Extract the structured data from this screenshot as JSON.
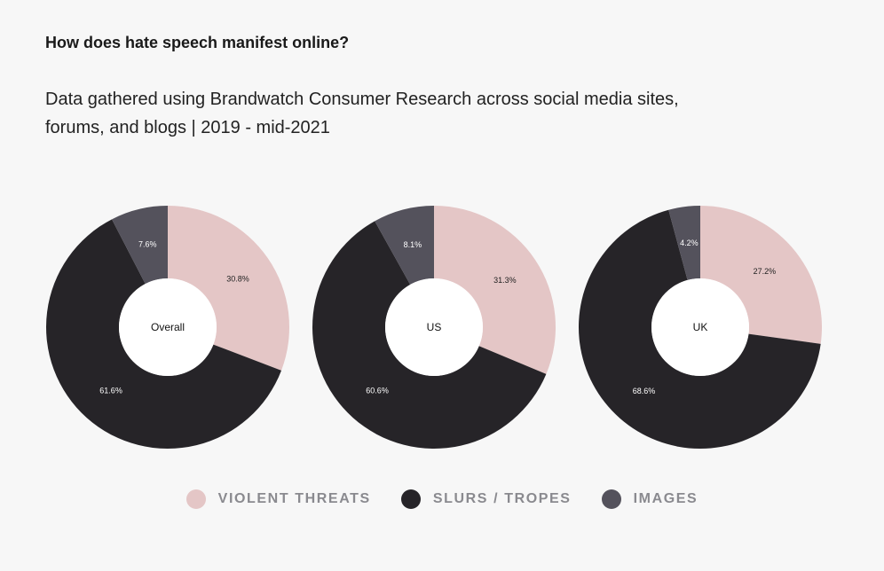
{
  "header": {
    "title": "How does hate speech manifest online?",
    "subtitle": "Data gathered using Brandwatch Consumer Research across social media sites, forums, and blogs | 2019 - mid-2021"
  },
  "colors": {
    "violent_threats": "#e4c6c6",
    "slurs_tropes": "#262428",
    "images": "#54525c",
    "center": "#ffffff"
  },
  "chart_data": {
    "type": "pie",
    "variant": "donut",
    "categories": [
      "VIOLENT THREATS",
      "SLURS / TROPES",
      "IMAGES"
    ],
    "charts": [
      {
        "name": "Overall",
        "values": [
          30.8,
          61.6,
          7.6
        ],
        "labels": [
          "30.8%",
          "61.6%",
          "7.6%"
        ]
      },
      {
        "name": "US",
        "values": [
          31.3,
          60.6,
          8.1
        ],
        "labels": [
          "31.3%",
          "60.6%",
          "8.1%"
        ]
      },
      {
        "name": "UK",
        "values": [
          27.2,
          68.6,
          4.2
        ],
        "labels": [
          "27.2%",
          "68.6%",
          "4.2%"
        ]
      }
    ],
    "legend": [
      "VIOLENT THREATS",
      "SLURS / TROPES",
      "IMAGES"
    ]
  }
}
